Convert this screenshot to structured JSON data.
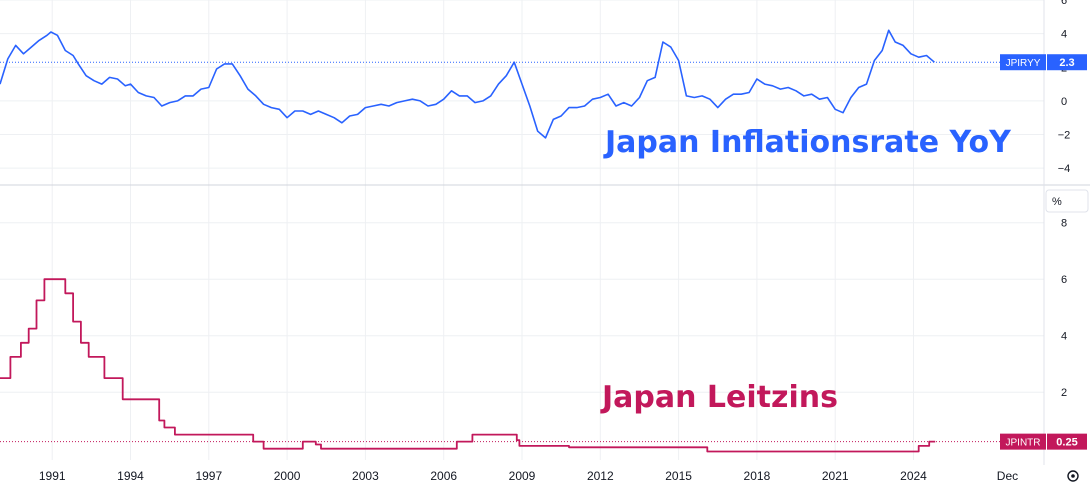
{
  "colors": {
    "inflation": "#2962ff",
    "rate": "#c2185b",
    "grid": "#eef0f3",
    "axis_text": "#131722",
    "pane_divider": "#d1d4dc"
  },
  "icons": {
    "settings": "gear-icon"
  },
  "chart_data": [
    {
      "type": "line",
      "pane": "top",
      "title": "Japan Inflationsrate YoY",
      "series": [
        {
          "name": "JPIRYY",
          "last_value": "2.3",
          "x": [
            1989.0,
            1989.3,
            1989.6,
            1989.9,
            1990.2,
            1990.5,
            1990.8,
            1990.95,
            1991.2,
            1991.5,
            1991.8,
            1992.0,
            1992.3,
            1992.6,
            1992.9,
            1993.2,
            1993.5,
            1993.8,
            1994.0,
            1994.3,
            1994.6,
            1994.9,
            1995.2,
            1995.5,
            1995.8,
            1996.1,
            1996.4,
            1996.7,
            1997.0,
            1997.3,
            1997.6,
            1997.9,
            1998.2,
            1998.5,
            1998.8,
            1999.1,
            1999.4,
            1999.7,
            2000.0,
            2000.3,
            2000.6,
            2000.9,
            2001.2,
            2001.5,
            2001.8,
            2002.1,
            2002.4,
            2002.7,
            2003.0,
            2003.3,
            2003.6,
            2003.9,
            2004.2,
            2004.5,
            2004.8,
            2005.1,
            2005.4,
            2005.7,
            2006.0,
            2006.3,
            2006.6,
            2006.9,
            2007.2,
            2007.5,
            2007.8,
            2008.1,
            2008.4,
            2008.7,
            2009.0,
            2009.3,
            2009.6,
            2009.9,
            2010.2,
            2010.5,
            2010.8,
            2011.1,
            2011.4,
            2011.7,
            2012.0,
            2012.3,
            2012.6,
            2012.9,
            2013.2,
            2013.5,
            2013.8,
            2014.1,
            2014.4,
            2014.7,
            2015.0,
            2015.3,
            2015.6,
            2015.9,
            2016.2,
            2016.5,
            2016.8,
            2017.1,
            2017.4,
            2017.7,
            2018.0,
            2018.3,
            2018.6,
            2018.9,
            2019.2,
            2019.5,
            2019.8,
            2020.1,
            2020.4,
            2020.7,
            2021.0,
            2021.3,
            2021.6,
            2021.9,
            2022.2,
            2022.5,
            2022.8,
            2023.05,
            2023.3,
            2023.6,
            2023.9,
            2024.2,
            2024.5,
            2024.8
          ],
          "values": [
            1.0,
            2.5,
            3.3,
            2.8,
            3.2,
            3.6,
            3.9,
            4.1,
            3.9,
            3.0,
            2.7,
            2.2,
            1.5,
            1.2,
            1.0,
            1.4,
            1.3,
            0.9,
            1.0,
            0.5,
            0.3,
            0.2,
            -0.3,
            -0.1,
            0.0,
            0.3,
            0.3,
            0.7,
            0.8,
            1.9,
            2.2,
            2.2,
            1.5,
            0.7,
            0.3,
            -0.2,
            -0.4,
            -0.5,
            -1.0,
            -0.6,
            -0.6,
            -0.8,
            -0.6,
            -0.8,
            -1.0,
            -1.3,
            -0.9,
            -0.8,
            -0.4,
            -0.3,
            -0.2,
            -0.3,
            -0.1,
            0.0,
            0.1,
            0.0,
            -0.3,
            -0.2,
            0.1,
            0.6,
            0.3,
            0.3,
            -0.1,
            0.0,
            0.3,
            1.0,
            1.5,
            2.3,
            1.0,
            -0.3,
            -1.8,
            -2.2,
            -1.1,
            -0.9,
            -0.4,
            -0.4,
            -0.3,
            0.1,
            0.2,
            0.4,
            -0.3,
            -0.1,
            -0.3,
            0.2,
            1.2,
            1.4,
            3.5,
            3.2,
            2.4,
            0.3,
            0.2,
            0.3,
            0.1,
            -0.4,
            0.1,
            0.4,
            0.4,
            0.5,
            1.3,
            1.0,
            0.9,
            0.7,
            0.8,
            0.6,
            0.3,
            0.4,
            0.1,
            0.2,
            -0.5,
            -0.7,
            0.2,
            0.8,
            1.0,
            2.4,
            3.0,
            4.2,
            3.5,
            3.3,
            2.8,
            2.6,
            2.7,
            2.3
          ]
        }
      ],
      "ylim": [
        -5,
        6
      ],
      "yticks": [
        "6",
        "4",
        "2",
        "0",
        "−2",
        "−4"
      ],
      "ytick_values": [
        6,
        4,
        2,
        0,
        -2,
        -4
      ],
      "grid": true
    },
    {
      "type": "line",
      "pane": "bottom",
      "title": "Japan Leitzins",
      "unit_label": "%",
      "series": [
        {
          "name": "JPINTR",
          "last_value": "0.25",
          "step": true,
          "x": [
            1989.0,
            1989.4,
            1989.8,
            1990.1,
            1990.4,
            1990.7,
            1991.5,
            1991.8,
            1992.1,
            1992.4,
            1993.0,
            1993.7,
            1995.1,
            1995.3,
            1995.7,
            1998.7,
            1999.1,
            2000.6,
            2001.1,
            2001.3,
            2006.5,
            2007.1,
            2008.8,
            2008.9,
            2009.0,
            2010.8,
            2016.1,
            2024.2,
            2024.6
          ],
          "values": [
            2.5,
            3.25,
            3.75,
            4.25,
            5.25,
            6.0,
            5.5,
            4.5,
            3.75,
            3.25,
            2.5,
            1.75,
            1.0,
            0.75,
            0.5,
            0.25,
            0.0,
            0.25,
            0.15,
            0.0,
            0.25,
            0.5,
            0.3,
            0.1,
            0.1,
            0.05,
            -0.1,
            0.1,
            0.25
          ]
        }
      ],
      "ylim": [
        -0.4,
        9.3
      ],
      "yticks": [
        "8",
        "6",
        "4",
        "2"
      ],
      "ytick_values": [
        8,
        6,
        4,
        2
      ],
      "grid": true
    }
  ],
  "x_axis": {
    "ticks": [
      "1991",
      "1994",
      "1997",
      "2000",
      "2003",
      "2006",
      "2009",
      "2012",
      "2015",
      "2018",
      "2021",
      "2024",
      "Dec"
    ],
    "tick_years": [
      1991,
      1994,
      1997,
      2000,
      2003,
      2006,
      2009,
      2012,
      2015,
      2018,
      2021,
      2024,
      2027.6
    ],
    "range": [
      1989.0,
      2029.0
    ]
  }
}
